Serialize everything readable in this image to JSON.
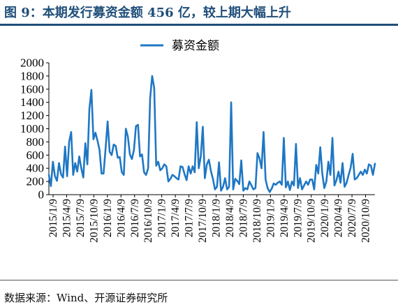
{
  "title": "图 9：本期发行募资金额 456 亿，较上期大幅上升",
  "source": "数据来源：Wind、开源证券研究所",
  "colors": {
    "title": "#1f4e79",
    "series": "#1f77c4",
    "axis": "#000000"
  },
  "chart_data": {
    "type": "line",
    "title": "",
    "xlabel": "",
    "ylabel": "",
    "ylim": [
      0,
      2000
    ],
    "yticks": [
      0,
      200,
      400,
      600,
      800,
      1000,
      1200,
      1400,
      1600,
      1800,
      2000
    ],
    "xtick_labels": [
      "2015/1/9",
      "2015/4/9",
      "2015/7/9",
      "2015/10/9",
      "2016/1/9",
      "2016/4/9",
      "2016/7/9",
      "2016/10/9",
      "2017/1/9",
      "2017/4/9",
      "2017/7/9",
      "2017/10/9",
      "2018/1/9",
      "2018/4/9",
      "2018/7/9",
      "2018/10/9",
      "2019/1/9",
      "2019/4/9",
      "2019/7/9",
      "2019/10/9",
      "2020/1/9",
      "2020/4/9",
      "2020/7/9",
      "2020/10/9"
    ],
    "grid": false,
    "legend": "top-center",
    "series": [
      {
        "name": "募资金额",
        "values": [
          300,
          130,
          500,
          280,
          210,
          480,
          310,
          260,
          730,
          280,
          800,
          950,
          300,
          480,
          350,
          580,
          400,
          260,
          780,
          460,
          1300,
          1590,
          840,
          940,
          820,
          680,
          320,
          320,
          700,
          1110,
          650,
          600,
          760,
          740,
          560,
          570,
          340,
          300,
          1000,
          880,
          610,
          540,
          680,
          1040,
          1060,
          580,
          610,
          340,
          300,
          400,
          1460,
          1800,
          1620,
          440,
          500,
          370,
          400,
          460,
          430,
          200,
          240,
          300,
          280,
          250,
          230,
          430,
          420,
          310,
          220,
          430,
          320,
          430,
          340,
          1100,
          400,
          580,
          1030,
          250,
          460,
          530,
          360,
          240,
          80,
          120,
          490,
          60,
          120,
          250,
          80,
          120,
          1400,
          80,
          240,
          210,
          160,
          520,
          60,
          100,
          80,
          200,
          140,
          80,
          100,
          630,
          550,
          400,
          950,
          230,
          100,
          40,
          90,
          170,
          150,
          180,
          200,
          150,
          860,
          110,
          200,
          70,
          200,
          140,
          770,
          100,
          250,
          80,
          140,
          200,
          150,
          230,
          230,
          80,
          450,
          320,
          720,
          320,
          100,
          200,
          500,
          300,
          860,
          140,
          220,
          350,
          180,
          480,
          120,
          180,
          300,
          410,
          620,
          230,
          250,
          300,
          350,
          300,
          380,
          320,
          460,
          440,
          300,
          470
        ]
      }
    ]
  }
}
